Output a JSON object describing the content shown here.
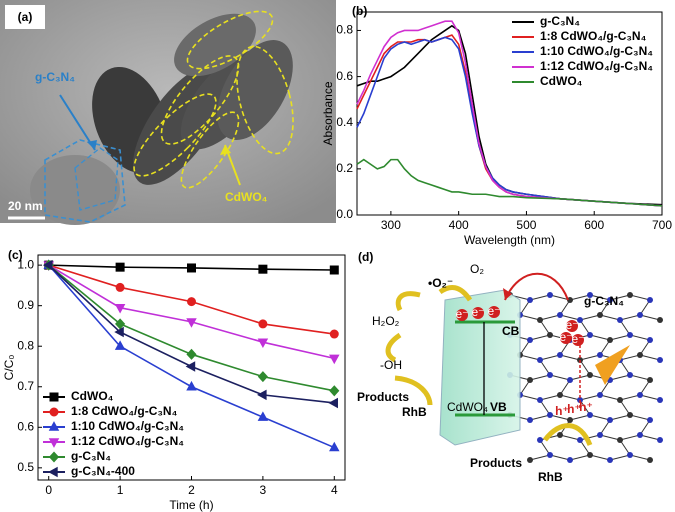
{
  "image_panel": {
    "panel_label": "(a)",
    "labels": [
      "g-C₃N₄",
      "CdWO₄"
    ],
    "scale_bar": "20 nm"
  },
  "chart_data": [
    {
      "type": "line",
      "panel_label": "(b)",
      "x_label": "Wavelength (nm)",
      "y_label": "Absorbance",
      "x": [
        250,
        260,
        270,
        280,
        290,
        300,
        310,
        320,
        330,
        340,
        350,
        360,
        370,
        380,
        390,
        400,
        410,
        420,
        430,
        440,
        450,
        460,
        470,
        480,
        500,
        550,
        600,
        650,
        700
      ],
      "xlim": [
        250,
        700
      ],
      "xticks": [
        300,
        400,
        500,
        600,
        700
      ],
      "ylim": [
        0,
        0.88
      ],
      "yticks": [
        {
          "value": 0,
          "label": "0.0"
        },
        0.2,
        0.4,
        0.6,
        0.8
      ],
      "legend": "upper right",
      "series": [
        {
          "name": "g-C₃N₄",
          "color": "#000000",
          "values": [
            0.56,
            0.57,
            0.58,
            0.58,
            0.59,
            0.6,
            0.62,
            0.64,
            0.67,
            0.7,
            0.73,
            0.76,
            0.78,
            0.8,
            0.82,
            0.8,
            0.7,
            0.52,
            0.34,
            0.22,
            0.16,
            0.13,
            0.11,
            0.1,
            0.09,
            0.07,
            0.06,
            0.05,
            0.045
          ]
        },
        {
          "name": "1:8 CdWO₄/g-C₃N₄",
          "color": "#e02020",
          "values": [
            0.46,
            0.52,
            0.58,
            0.64,
            0.7,
            0.73,
            0.75,
            0.75,
            0.75,
            0.76,
            0.76,
            0.75,
            0.76,
            0.77,
            0.78,
            0.74,
            0.62,
            0.45,
            0.3,
            0.2,
            0.15,
            0.12,
            0.1,
            0.09,
            0.08,
            0.07,
            0.06,
            0.05,
            0.04
          ]
        },
        {
          "name": "1:10 CdWO₄/g-C₃N₄",
          "color": "#2a3fd0",
          "values": [
            0.38,
            0.44,
            0.52,
            0.6,
            0.68,
            0.72,
            0.74,
            0.75,
            0.74,
            0.75,
            0.76,
            0.75,
            0.76,
            0.77,
            0.76,
            0.72,
            0.6,
            0.44,
            0.3,
            0.21,
            0.16,
            0.13,
            0.11,
            0.1,
            0.09,
            0.07,
            0.06,
            0.05,
            0.04
          ]
        },
        {
          "name": "1:12 CdWO₄/g-C₃N₄",
          "color": "#d030d0",
          "values": [
            0.48,
            0.54,
            0.61,
            0.67,
            0.73,
            0.77,
            0.79,
            0.8,
            0.8,
            0.8,
            0.81,
            0.82,
            0.83,
            0.84,
            0.84,
            0.79,
            0.66,
            0.48,
            0.31,
            0.21,
            0.15,
            0.12,
            0.1,
            0.09,
            0.08,
            0.07,
            0.06,
            0.05,
            0.04
          ]
        },
        {
          "name": "CdWO₄",
          "color": "#2f8a2f",
          "values": [
            0.22,
            0.24,
            0.22,
            0.2,
            0.21,
            0.24,
            0.24,
            0.2,
            0.17,
            0.15,
            0.14,
            0.13,
            0.12,
            0.11,
            0.1,
            0.1,
            0.095,
            0.09,
            0.09,
            0.09,
            0.085,
            0.08,
            0.08,
            0.08,
            0.075,
            0.07,
            0.06,
            0.05,
            0.04
          ]
        }
      ]
    },
    {
      "type": "line",
      "panel_label": "(c)",
      "x_label": "Time (h)",
      "y_label": "C/C₀",
      "x": [
        0,
        1,
        2,
        3,
        4
      ],
      "xlim": [
        -0.15,
        4.15
      ],
      "xticks": [
        0,
        1,
        2,
        3,
        4
      ],
      "ylim": [
        0.47,
        1.025
      ],
      "yticks": [
        0.5,
        0.6,
        0.7,
        0.8,
        0.9,
        {
          "value": 1,
          "label": "1.0"
        }
      ],
      "legend": "lower left",
      "series": [
        {
          "name": "CdWO₄",
          "color": "#000000",
          "marker": "square",
          "values": [
            1.0,
            0.995,
            0.993,
            0.99,
            0.988
          ]
        },
        {
          "name": "1:8 CdWO₄/g-C₃N₄",
          "color": "#e02020",
          "marker": "circle",
          "values": [
            1.0,
            0.945,
            0.91,
            0.855,
            0.83
          ]
        },
        {
          "name": "1:10 CdWO₄/g-C₃N₄",
          "color": "#2a3fd0",
          "marker": "triangle-up",
          "values": [
            1.0,
            0.8,
            0.7,
            0.625,
            0.55
          ]
        },
        {
          "name": "1:12 CdWO₄/g-C₃N₄",
          "color": "#c030d8",
          "marker": "triangle-down",
          "values": [
            1.0,
            0.895,
            0.86,
            0.81,
            0.77
          ]
        },
        {
          "name": "g-C₃N₄",
          "color": "#2f8a2f",
          "marker": "diamond",
          "values": [
            1.0,
            0.855,
            0.78,
            0.725,
            0.69
          ]
        },
        {
          "name": "g-C₃N₄-400",
          "color": "#1c2060",
          "marker": "triangle-left",
          "values": [
            1.0,
            0.835,
            0.75,
            0.68,
            0.66
          ]
        }
      ]
    }
  ],
  "diagram": {
    "panel_label": "(d)",
    "labels": {
      "o2": "O₂",
      "superoxide": "•O₂⁻",
      "h2o2": "H₂O₂",
      "oh": "-OH",
      "products_left": "Products",
      "rhb_left": "RhB",
      "cb": "CB",
      "vb": "VB",
      "cdwo4": "CdWO₄",
      "gcn": "g-C₃N₄",
      "products_bottom": "Products",
      "rhb_bottom": "RhB",
      "electron": "e⁻",
      "hole": "h⁺"
    }
  }
}
